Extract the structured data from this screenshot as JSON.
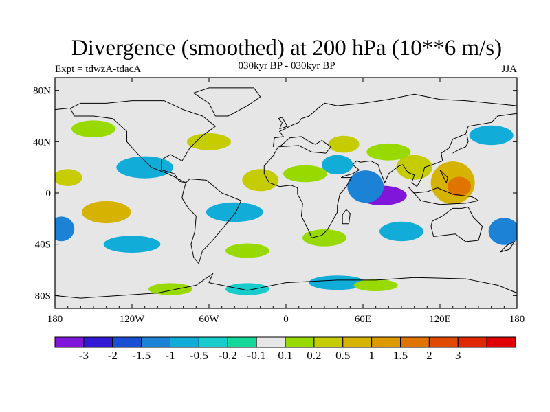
{
  "title": "Divergence (smoothed) at 200 hPa (10**6 m/s)",
  "subtitle": "030kyr BP - 030kyr BP",
  "experiment": "Expt = tdwzA-tdacA",
  "season": "JJA",
  "map": {
    "projection": "cylindrical-equidistant",
    "lon_range": [
      -180,
      180
    ],
    "lat_range": [
      -90,
      90
    ],
    "background_color": "#e6e6e6",
    "coastline_color": "#000000",
    "lat_ticks": [
      {
        "lat": 80,
        "label": "80N"
      },
      {
        "lat": 40,
        "label": "40N"
      },
      {
        "lat": 0,
        "label": "0"
      },
      {
        "lat": -40,
        "label": "40S"
      },
      {
        "lat": -80,
        "label": "80S"
      }
    ],
    "lon_ticks": [
      {
        "lon": -180,
        "label": "180"
      },
      {
        "lon": -120,
        "label": "120W"
      },
      {
        "lon": -60,
        "label": "60W"
      },
      {
        "lon": 0,
        "label": "0"
      },
      {
        "lon": 60,
        "label": "60E"
      },
      {
        "lon": 120,
        "label": "120E"
      },
      {
        "lon": 180,
        "label": "180"
      }
    ]
  },
  "colorbar": {
    "colors": [
      "#7f16d9",
      "#3219d4",
      "#1a4fd3",
      "#1b82d6",
      "#11acd8",
      "#19cccc",
      "#14d79a",
      "#e6e6e6",
      "#98d900",
      "#c5cc00",
      "#d5b300",
      "#dd9a00",
      "#e07400",
      "#e04a00",
      "#e02800",
      "#e00000"
    ],
    "labels": [
      "-3",
      "-2",
      "-1.5",
      "-1",
      "-0.5",
      "-0.2",
      "-0.1",
      "0.1",
      "0.2",
      "0.5",
      "1",
      "1.5",
      "2",
      "3"
    ]
  },
  "field_blobs": [
    {
      "lon": 75,
      "lat": -2,
      "w": 34,
      "h": 12,
      "v": -3
    },
    {
      "lon": 77,
      "lat": -2,
      "w": 18,
      "h": 6,
      "v": -4
    },
    {
      "lon": 62,
      "lat": 5,
      "w": 24,
      "h": 22,
      "v": -1
    },
    {
      "lon": 130,
      "lat": 8,
      "w": 30,
      "h": 30,
      "v": 1
    },
    {
      "lon": 135,
      "lat": 5,
      "w": 14,
      "h": 12,
      "v": 2
    },
    {
      "lon": 100,
      "lat": 20,
      "w": 24,
      "h": 16,
      "v": 0.5
    },
    {
      "lon": 80,
      "lat": 32,
      "w": 30,
      "h": 10,
      "v": 0.2
    },
    {
      "lon": 45,
      "lat": 38,
      "w": 20,
      "h": 10,
      "v": 0.5
    },
    {
      "lon": 40,
      "lat": 22,
      "w": 20,
      "h": 12,
      "v": -0.5
    },
    {
      "lon": 15,
      "lat": 15,
      "w": 30,
      "h": 10,
      "v": 0.2
    },
    {
      "lon": -20,
      "lat": 10,
      "w": 24,
      "h": 14,
      "v": 0.5
    },
    {
      "lon": -40,
      "lat": -15,
      "w": 40,
      "h": 12,
      "v": -0.5
    },
    {
      "lon": -110,
      "lat": 20,
      "w": 40,
      "h": 14,
      "v": -0.5
    },
    {
      "lon": -140,
      "lat": -15,
      "w": 34,
      "h": 14,
      "v": 1
    },
    {
      "lon": -170,
      "lat": 12,
      "w": 18,
      "h": 10,
      "v": 0.5
    },
    {
      "lon": -175,
      "lat": -28,
      "w": 16,
      "h": 16,
      "v": -1
    },
    {
      "lon": 170,
      "lat": -30,
      "w": 20,
      "h": 18,
      "v": -1
    },
    {
      "lon": 160,
      "lat": 45,
      "w": 30,
      "h": 12,
      "v": -0.5
    },
    {
      "lon": -150,
      "lat": 50,
      "w": 30,
      "h": 10,
      "v": 0.2
    },
    {
      "lon": -60,
      "lat": 40,
      "w": 30,
      "h": 10,
      "v": 0.5
    },
    {
      "lon": 30,
      "lat": -35,
      "w": 30,
      "h": 10,
      "v": 0.2
    },
    {
      "lon": 90,
      "lat": -30,
      "w": 30,
      "h": 12,
      "v": -0.5
    },
    {
      "lon": -120,
      "lat": -40,
      "w": 40,
      "h": 10,
      "v": -0.5
    },
    {
      "lon": -30,
      "lat": -45,
      "w": 30,
      "h": 8,
      "v": 0.2
    },
    {
      "lon": 40,
      "lat": -70,
      "w": 40,
      "h": 8,
      "v": -0.5
    },
    {
      "lon": 70,
      "lat": -72,
      "w": 30,
      "h": 6,
      "v": 0.2
    },
    {
      "lon": -30,
      "lat": -75,
      "w": 30,
      "h": 6,
      "v": -0.2
    },
    {
      "lon": -90,
      "lat": -75,
      "w": 30,
      "h": 6,
      "v": 0.2
    }
  ]
}
